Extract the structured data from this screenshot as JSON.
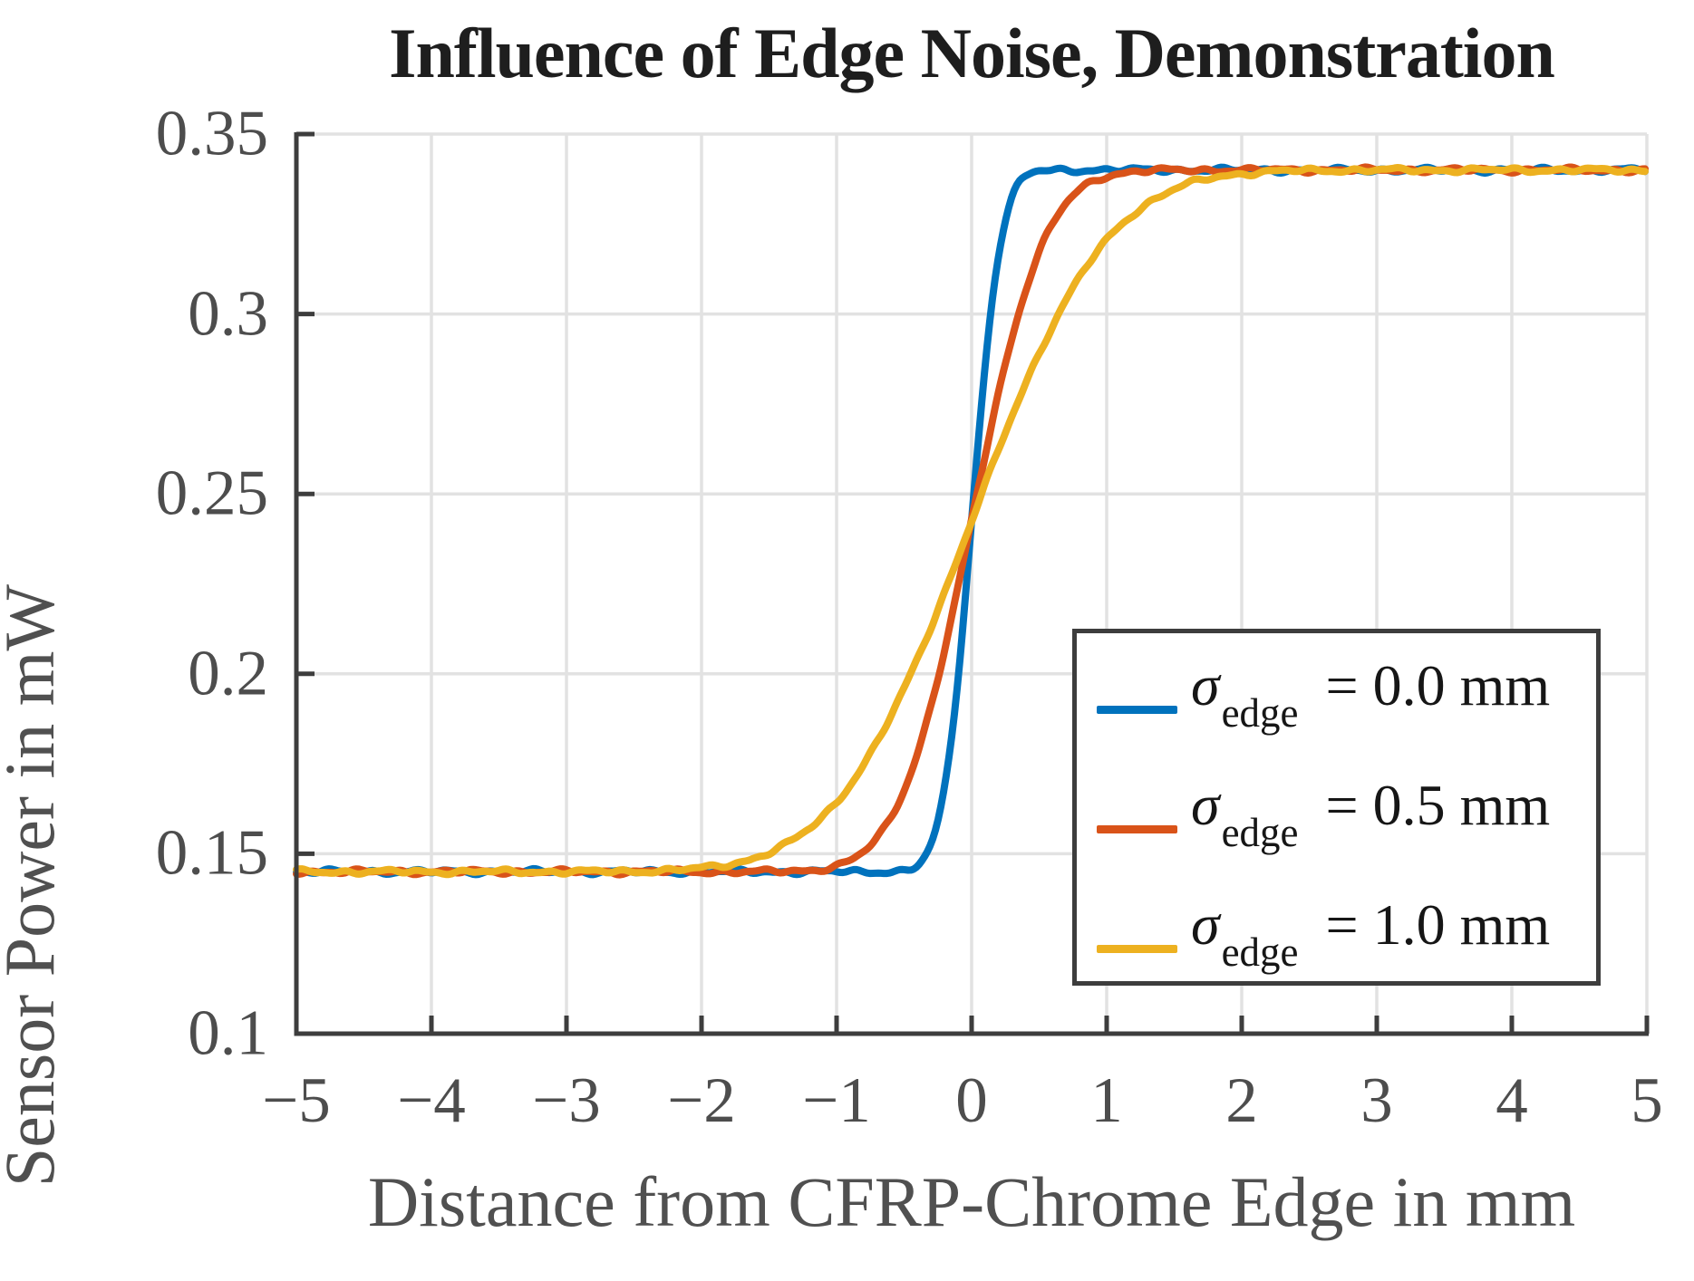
{
  "figure": {
    "title": "Influence of Edge Noise, Demonstration",
    "background_color": "#ffffff"
  },
  "chart_data": {
    "type": "line",
    "title": "Influence of Edge Noise, Demonstration",
    "xlabel": "Distance from CFRP-Chrome Edge in mm",
    "ylabel": "Sensor Power in mW",
    "xlim": [
      -5,
      5
    ],
    "ylim": [
      0.1,
      0.35
    ],
    "xticks": [
      -5,
      -4,
      -3,
      -2,
      -1,
      0,
      1,
      2,
      3,
      4,
      5
    ],
    "xtick_labels": [
      "−5",
      "−4",
      "−3",
      "−2",
      "−1",
      "0",
      "1",
      "2",
      "3",
      "4",
      "5"
    ],
    "yticks": [
      0.1,
      0.15,
      0.2,
      0.25,
      0.3,
      0.35
    ],
    "ytick_labels": [
      "0.1",
      "0.15",
      "0.2",
      "0.25",
      "0.3",
      "0.35"
    ],
    "grid": true,
    "styles": {
      "grid_color": "#e2e2e2",
      "axis_color": "#3d3d3d",
      "label_color": "#505050",
      "tick_label_color": "#4d4d4d",
      "title_color": "#1e1e1e",
      "curve_line_width": 8
    },
    "legend": {
      "position": "inside lower-right of axes",
      "border_color": "#3d3d3d",
      "entries": [
        {
          "symbol": "σ",
          "subscript": "edge",
          "value": "= 0.0 mm",
          "color": "#0072BD"
        },
        {
          "symbol": "σ",
          "subscript": "edge",
          "value": "= 0.5 mm",
          "color": "#D95319"
        },
        {
          "symbol": "σ",
          "subscript": "edge",
          "value": "= 1.0 mm",
          "color": "#EDB120"
        }
      ]
    },
    "series": [
      {
        "name": "sigma_edge = 0.0 mm",
        "color": "#0072BD",
        "model": {
          "type": "erf-step",
          "low": 0.145,
          "high": 0.34,
          "center": 0.0,
          "sigma_eff_mm": 0.17
        },
        "noise": {
          "amplitude": 0.00035,
          "freqs": [
            21,
            37,
            8.5
          ],
          "weights": [
            1,
            0.65,
            0.8
          ],
          "phases": [
            0.5,
            2.1,
            4.0
          ]
        },
        "points": {
          "x": [
            -5,
            -4.5,
            -4,
            -3.5,
            -3,
            -2.5,
            -2,
            -1.5,
            -1,
            -0.5,
            0,
            0.5,
            1,
            1.5,
            2,
            2.5,
            3,
            3.5,
            4,
            4.5,
            5
          ],
          "y": [
            0.145,
            0.145,
            0.145,
            0.145,
            0.145,
            0.145,
            0.145,
            0.145,
            0.145,
            0.1453,
            0.2425,
            0.3397,
            0.34,
            0.34,
            0.34,
            0.34,
            0.34,
            0.34,
            0.34,
            0.34,
            0.34
          ]
        }
      },
      {
        "name": "sigma_edge = 0.5 mm",
        "color": "#D95319",
        "model": {
          "type": "erf-step",
          "low": 0.145,
          "high": 0.34,
          "center": 0.0,
          "sigma_eff_mm": 0.42
        },
        "noise": {
          "amplitude": 0.00035,
          "freqs": [
            21,
            37,
            8.5
          ],
          "weights": [
            1,
            0.65,
            0.8
          ],
          "phases": [
            2.8,
            0.7,
            1.9
          ]
        },
        "points": {
          "x": [
            -5,
            -4.5,
            -4,
            -3.5,
            -3,
            -2.5,
            -2,
            -1.5,
            -1,
            -0.5,
            0,
            0.5,
            1,
            1.5,
            2,
            2.5,
            3,
            3.5,
            4,
            4.5,
            5
          ],
          "y": [
            0.145,
            0.145,
            0.145,
            0.145,
            0.145,
            0.145,
            0.145,
            0.1454,
            0.1467,
            0.1678,
            0.2425,
            0.3172,
            0.3383,
            0.3396,
            0.34,
            0.34,
            0.34,
            0.34,
            0.34,
            0.34,
            0.34
          ]
        }
      },
      {
        "name": "sigma_edge = 1.0 mm",
        "color": "#EDB120",
        "model": {
          "type": "erf-step",
          "low": 0.145,
          "high": 0.34,
          "center": 0.0,
          "sigma_eff_mm": 0.78
        },
        "noise": {
          "amplitude": 0.00035,
          "freqs": [
            21,
            37,
            8.5
          ],
          "weights": [
            1,
            0.65,
            0.8
          ],
          "phases": [
            5.1,
            3.3,
            0.2
          ]
        },
        "points": {
          "x": [
            -5,
            -4.5,
            -4,
            -3.5,
            -3,
            -2.5,
            -2,
            -1.5,
            -1,
            -0.5,
            0,
            0.5,
            1,
            1.5,
            2,
            2.5,
            3,
            3.5,
            4,
            4.5,
            5
          ],
          "y": [
            0.145,
            0.145,
            0.145,
            0.145,
            0.145,
            0.1451,
            0.146,
            0.1503,
            0.1645,
            0.1959,
            0.2425,
            0.2891,
            0.3205,
            0.3347,
            0.339,
            0.3399,
            0.34,
            0.34,
            0.34,
            0.34,
            0.34
          ]
        }
      }
    ]
  }
}
